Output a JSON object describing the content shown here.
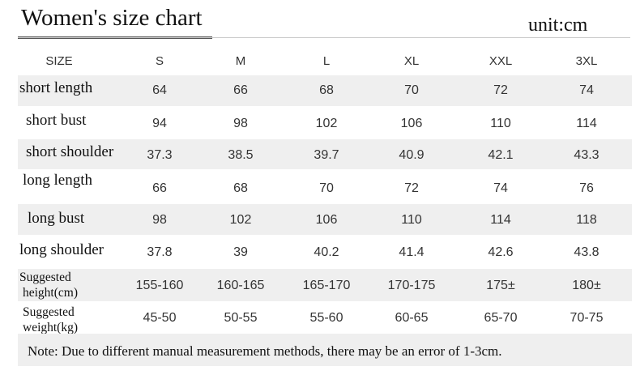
{
  "title": "Women's size chart",
  "unit": "unit:cm",
  "header": {
    "label": "SIZE",
    "sizes": [
      "S",
      "M",
      "L",
      "XL",
      "XXL",
      "3XL"
    ]
  },
  "rows": [
    {
      "label": "short length",
      "values": [
        "64",
        "66",
        "68",
        "70",
        "72",
        "74"
      ]
    },
    {
      "label": "short bust",
      "values": [
        "94",
        "98",
        "102",
        "106",
        "110",
        "114"
      ]
    },
    {
      "label": "short shoulder",
      "values": [
        "37.3",
        "38.5",
        "39.7",
        "40.9",
        "42.1",
        "43.3"
      ]
    },
    {
      "label": "long length",
      "values": [
        "66",
        "68",
        "70",
        "72",
        "74",
        "76"
      ]
    },
    {
      "label": "long bust",
      "values": [
        "98",
        "102",
        "106",
        "110",
        "114",
        "118"
      ]
    },
    {
      "label": "long shoulder",
      "values": [
        "37.8",
        "39",
        "40.2",
        "41.4",
        "42.6",
        "43.8"
      ]
    },
    {
      "label_line1": "Suggested",
      "label_line2": "height(cm)",
      "values": [
        "155-160",
        "160-165",
        "165-170",
        "170-175",
        "175±",
        "180±"
      ]
    },
    {
      "label_line1": "Suggested",
      "label_line2": "weight(kg)",
      "values": [
        "45-50",
        "50-55",
        "55-60",
        "60-65",
        "65-70",
        "70-75"
      ]
    }
  ],
  "note": "Note: Due to different manual measurement methods, there may be an error of 1-3cm."
}
